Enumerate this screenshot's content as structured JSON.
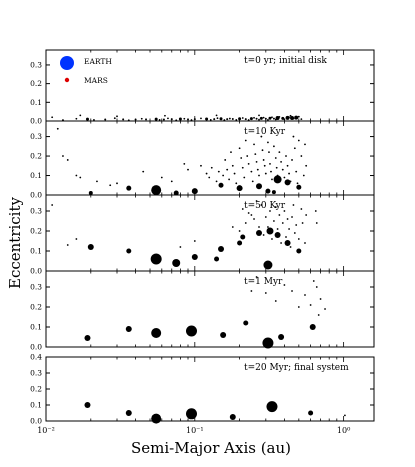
{
  "chart_data": {
    "type": "scatter",
    "ylabel": "Eccentricity",
    "xlabel": "Semi-Major Axis (au)",
    "x_scale": "log",
    "xlim": [
      0.01,
      1.6
    ],
    "x_tick_labels": [
      "10⁻²",
      "10⁻¹",
      "10⁰"
    ],
    "x_tick_values": [
      0.01,
      0.1,
      1
    ],
    "legend": {
      "placement": "top-left",
      "entries": [
        {
          "label": "EARTH",
          "color": "#0033ff"
        },
        {
          "label": "MARS",
          "color": "#dd0000"
        }
      ]
    },
    "panels": [
      {
        "label": "t=0 yr; initial disk",
        "ylim": [
          0,
          0.38
        ],
        "yticks": [
          0.0,
          0.1,
          0.2,
          0.3
        ],
        "tick_labels": [
          "0.0",
          "0.1",
          "0.2",
          "0.3"
        ],
        "big": [
          [
            0.019,
            0.01,
            1.5
          ],
          [
            0.025,
            0.008,
            1
          ],
          [
            0.033,
            0.009,
            1
          ],
          [
            0.04,
            0.008,
            1
          ],
          [
            0.047,
            0.009,
            1
          ],
          [
            0.055,
            0.01,
            1.5
          ],
          [
            0.062,
            0.008,
            1
          ],
          [
            0.07,
            0.01,
            1
          ],
          [
            0.08,
            0.011,
            1.5
          ],
          [
            0.09,
            0.009,
            1
          ],
          [
            0.1,
            0.01,
            1
          ],
          [
            0.12,
            0.011,
            1.5
          ],
          [
            0.135,
            0.01,
            1
          ],
          [
            0.15,
            0.012,
            1.5
          ],
          [
            0.165,
            0.01,
            1
          ],
          [
            0.18,
            0.011,
            1
          ],
          [
            0.2,
            0.012,
            1.5
          ],
          [
            0.22,
            0.01,
            1
          ],
          [
            0.24,
            0.013,
            1.5
          ],
          [
            0.26,
            0.012,
            1
          ],
          [
            0.28,
            0.014,
            1.5
          ],
          [
            0.3,
            0.012,
            1
          ],
          [
            0.32,
            0.015,
            1.5
          ],
          [
            0.34,
            0.013,
            1
          ],
          [
            0.36,
            0.016,
            2
          ],
          [
            0.39,
            0.014,
            1.5
          ],
          [
            0.42,
            0.017,
            2
          ],
          [
            0.45,
            0.016,
            2
          ],
          [
            0.48,
            0.018,
            2
          ]
        ],
        "small": [
          [
            0.011,
            0.02
          ],
          [
            0.013,
            0.005
          ],
          [
            0.016,
            0.012
          ],
          [
            0.021,
            0.006
          ],
          [
            0.029,
            0.015
          ],
          [
            0.036,
            0.004
          ],
          [
            0.044,
            0.012
          ],
          [
            0.058,
            0.006
          ],
          [
            0.066,
            0.014
          ],
          [
            0.075,
            0.004
          ],
          [
            0.085,
            0.012
          ],
          [
            0.095,
            0.005
          ],
          [
            0.11,
            0.014
          ],
          [
            0.128,
            0.006
          ],
          [
            0.142,
            0.015
          ],
          [
            0.158,
            0.005
          ],
          [
            0.172,
            0.013
          ],
          [
            0.19,
            0.006
          ],
          [
            0.21,
            0.016
          ],
          [
            0.23,
            0.005
          ],
          [
            0.25,
            0.017
          ],
          [
            0.27,
            0.007
          ],
          [
            0.29,
            0.018
          ],
          [
            0.31,
            0.006
          ],
          [
            0.33,
            0.02
          ],
          [
            0.35,
            0.008
          ],
          [
            0.37,
            0.022
          ],
          [
            0.4,
            0.009
          ],
          [
            0.43,
            0.02
          ],
          [
            0.46,
            0.012
          ],
          [
            0.5,
            0.023
          ],
          [
            0.52,
            0.01
          ],
          [
            0.017,
            0.03
          ],
          [
            0.03,
            0.025
          ],
          [
            0.063,
            0.028
          ],
          [
            0.14,
            0.03
          ],
          [
            0.27,
            0.03
          ],
          [
            0.44,
            0.028
          ]
        ]
      },
      {
        "label": "t=10 Kyr",
        "ylim": [
          0,
          0.38
        ],
        "yticks": [
          0.0,
          0.1,
          0.2,
          0.3
        ],
        "tick_labels": [
          "0.0",
          "0.1",
          "0.2",
          "0.3"
        ],
        "big": [
          [
            0.02,
            0.01,
            2
          ],
          [
            0.036,
            0.035,
            2.5
          ],
          [
            0.055,
            0.025,
            5
          ],
          [
            0.075,
            0.01,
            2.5
          ],
          [
            0.1,
            0.02,
            3
          ],
          [
            0.15,
            0.05,
            2.5
          ],
          [
            0.2,
            0.035,
            3
          ],
          [
            0.27,
            0.045,
            3
          ],
          [
            0.31,
            0.02,
            2.5
          ],
          [
            0.36,
            0.08,
            4
          ],
          [
            0.42,
            0.065,
            3
          ],
          [
            0.5,
            0.04,
            2.5
          ],
          [
            0.34,
            0.015,
            2
          ]
        ],
        "small": [
          [
            0.012,
            0.34
          ],
          [
            0.013,
            0.2
          ],
          [
            0.014,
            0.18
          ],
          [
            0.016,
            0.1
          ],
          [
            0.017,
            0.09
          ],
          [
            0.022,
            0.07
          ],
          [
            0.027,
            0.05
          ],
          [
            0.03,
            0.06
          ],
          [
            0.045,
            0.12
          ],
          [
            0.06,
            0.09
          ],
          [
            0.07,
            0.07
          ],
          [
            0.085,
            0.16
          ],
          [
            0.09,
            0.13
          ],
          [
            0.11,
            0.15
          ],
          [
            0.12,
            0.11
          ],
          [
            0.125,
            0.09
          ],
          [
            0.13,
            0.14
          ],
          [
            0.14,
            0.07
          ],
          [
            0.145,
            0.12
          ],
          [
            0.155,
            0.1
          ],
          [
            0.16,
            0.18
          ],
          [
            0.165,
            0.13
          ],
          [
            0.17,
            0.08
          ],
          [
            0.175,
            0.22
          ],
          [
            0.18,
            0.15
          ],
          [
            0.185,
            0.11
          ],
          [
            0.19,
            0.06
          ],
          [
            0.2,
            0.24
          ],
          [
            0.205,
            0.19
          ],
          [
            0.21,
            0.14
          ],
          [
            0.215,
            0.09
          ],
          [
            0.22,
            0.28
          ],
          [
            0.225,
            0.2
          ],
          [
            0.23,
            0.16
          ],
          [
            0.24,
            0.12
          ],
          [
            0.245,
            0.07
          ],
          [
            0.25,
            0.26
          ],
          [
            0.255,
            0.21
          ],
          [
            0.26,
            0.17
          ],
          [
            0.265,
            0.13
          ],
          [
            0.27,
            0.1
          ],
          [
            0.28,
            0.3
          ],
          [
            0.285,
            0.23
          ],
          [
            0.29,
            0.18
          ],
          [
            0.295,
            0.15
          ],
          [
            0.3,
            0.11
          ],
          [
            0.31,
            0.27
          ],
          [
            0.315,
            0.22
          ],
          [
            0.32,
            0.16
          ],
          [
            0.325,
            0.12
          ],
          [
            0.33,
            0.08
          ],
          [
            0.34,
            0.25
          ],
          [
            0.35,
            0.19
          ],
          [
            0.355,
            0.14
          ],
          [
            0.36,
            0.1
          ],
          [
            0.37,
            0.22
          ],
          [
            0.38,
            0.17
          ],
          [
            0.39,
            0.13
          ],
          [
            0.4,
            0.09
          ],
          [
            0.41,
            0.2
          ],
          [
            0.42,
            0.15
          ],
          [
            0.43,
            0.11
          ],
          [
            0.44,
            0.07
          ],
          [
            0.45,
            0.18
          ],
          [
            0.46,
            0.3
          ],
          [
            0.47,
            0.24
          ],
          [
            0.48,
            0.12
          ],
          [
            0.49,
            0.06
          ],
          [
            0.5,
            0.28
          ],
          [
            0.52,
            0.2
          ],
          [
            0.54,
            0.1
          ],
          [
            0.55,
            0.26
          ],
          [
            0.56,
            0.15
          ]
        ]
      },
      {
        "label": "t=50 Kyr",
        "ylim": [
          0,
          0.38
        ],
        "yticks": [
          0.0,
          0.1,
          0.2,
          0.3
        ],
        "tick_labels": [
          "0.0",
          "0.1",
          "0.2",
          "0.3"
        ],
        "big": [
          [
            0.02,
            0.12,
            3
          ],
          [
            0.036,
            0.1,
            2.5
          ],
          [
            0.055,
            0.06,
            5.5
          ],
          [
            0.075,
            0.04,
            4
          ],
          [
            0.1,
            0.07,
            3
          ],
          [
            0.15,
            0.11,
            3
          ],
          [
            0.2,
            0.14,
            2.5
          ],
          [
            0.21,
            0.17,
            2.5
          ],
          [
            0.27,
            0.19,
            3
          ],
          [
            0.32,
            0.2,
            3.5
          ],
          [
            0.36,
            0.18,
            3
          ],
          [
            0.42,
            0.14,
            3
          ],
          [
            0.31,
            0.03,
            4.5
          ],
          [
            0.5,
            0.1,
            2.5
          ],
          [
            0.14,
            0.06,
            2.5
          ]
        ],
        "small": [
          [
            0.011,
            0.33
          ],
          [
            0.014,
            0.13
          ],
          [
            0.016,
            0.16
          ],
          [
            0.08,
            0.12
          ],
          [
            0.1,
            0.15
          ],
          [
            0.18,
            0.22
          ],
          [
            0.2,
            0.2
          ],
          [
            0.21,
            0.31
          ],
          [
            0.22,
            0.24
          ],
          [
            0.23,
            0.29
          ],
          [
            0.24,
            0.28
          ],
          [
            0.25,
            0.26
          ],
          [
            0.26,
            0.35
          ],
          [
            0.27,
            0.22
          ],
          [
            0.28,
            0.33
          ],
          [
            0.29,
            0.18
          ],
          [
            0.3,
            0.27
          ],
          [
            0.31,
            0.22
          ],
          [
            0.32,
            0.3
          ],
          [
            0.33,
            0.16
          ],
          [
            0.34,
            0.25
          ],
          [
            0.35,
            0.32
          ],
          [
            0.36,
            0.21
          ],
          [
            0.37,
            0.28
          ],
          [
            0.38,
            0.14
          ],
          [
            0.39,
            0.24
          ],
          [
            0.4,
            0.3
          ],
          [
            0.41,
            0.17
          ],
          [
            0.42,
            0.26
          ],
          [
            0.43,
            0.21
          ],
          [
            0.44,
            0.12
          ],
          [
            0.45,
            0.27
          ],
          [
            0.46,
            0.33
          ],
          [
            0.47,
            0.19
          ],
          [
            0.48,
            0.23
          ],
          [
            0.5,
            0.16
          ],
          [
            0.52,
            0.31
          ],
          [
            0.53,
            0.24
          ],
          [
            0.55,
            0.14
          ],
          [
            0.56,
            0.28
          ],
          [
            0.65,
            0.3
          ],
          [
            0.66,
            0.24
          ]
        ]
      },
      {
        "label": "t=1 Myr",
        "ylim": [
          0,
          0.38
        ],
        "yticks": [
          0.0,
          0.1,
          0.2,
          0.3
        ],
        "tick_labels": [
          "0.0",
          "0.1",
          "0.2",
          "0.3"
        ],
        "big": [
          [
            0.019,
            0.045,
            3
          ],
          [
            0.036,
            0.09,
            3
          ],
          [
            0.055,
            0.07,
            5
          ],
          [
            0.095,
            0.08,
            5.5
          ],
          [
            0.155,
            0.06,
            3
          ],
          [
            0.22,
            0.12,
            2.5
          ],
          [
            0.31,
            0.02,
            5.5
          ],
          [
            0.38,
            0.05,
            3
          ],
          [
            0.62,
            0.1,
            3
          ]
        ],
        "small": [
          [
            0.24,
            0.28
          ],
          [
            0.26,
            0.35
          ],
          [
            0.3,
            0.27
          ],
          [
            0.35,
            0.23
          ],
          [
            0.4,
            0.31
          ],
          [
            0.45,
            0.28
          ],
          [
            0.5,
            0.2
          ],
          [
            0.55,
            0.26
          ],
          [
            0.6,
            0.21
          ],
          [
            0.63,
            0.33
          ],
          [
            0.66,
            0.3
          ],
          [
            0.68,
            0.16
          ],
          [
            0.7,
            0.24
          ],
          [
            0.75,
            0.19
          ]
        ]
      },
      {
        "label": "t=20 Myr; final system",
        "ylim": [
          0,
          0.4
        ],
        "yticks": [
          0.0,
          0.1,
          0.2,
          0.3,
          0.4
        ],
        "tick_labels": [
          "0.0",
          "0.1",
          "0.2",
          "0.3",
          "0.4"
        ],
        "big": [
          [
            0.019,
            0.1,
            3
          ],
          [
            0.036,
            0.05,
            3
          ],
          [
            0.055,
            0.015,
            5
          ],
          [
            0.095,
            0.045,
            5.5
          ],
          [
            0.18,
            0.025,
            3
          ],
          [
            0.33,
            0.09,
            5.5
          ],
          [
            0.6,
            0.05,
            2.5
          ]
        ],
        "small": [
          [
            1.02,
            0.035
          ]
        ]
      }
    ]
  }
}
